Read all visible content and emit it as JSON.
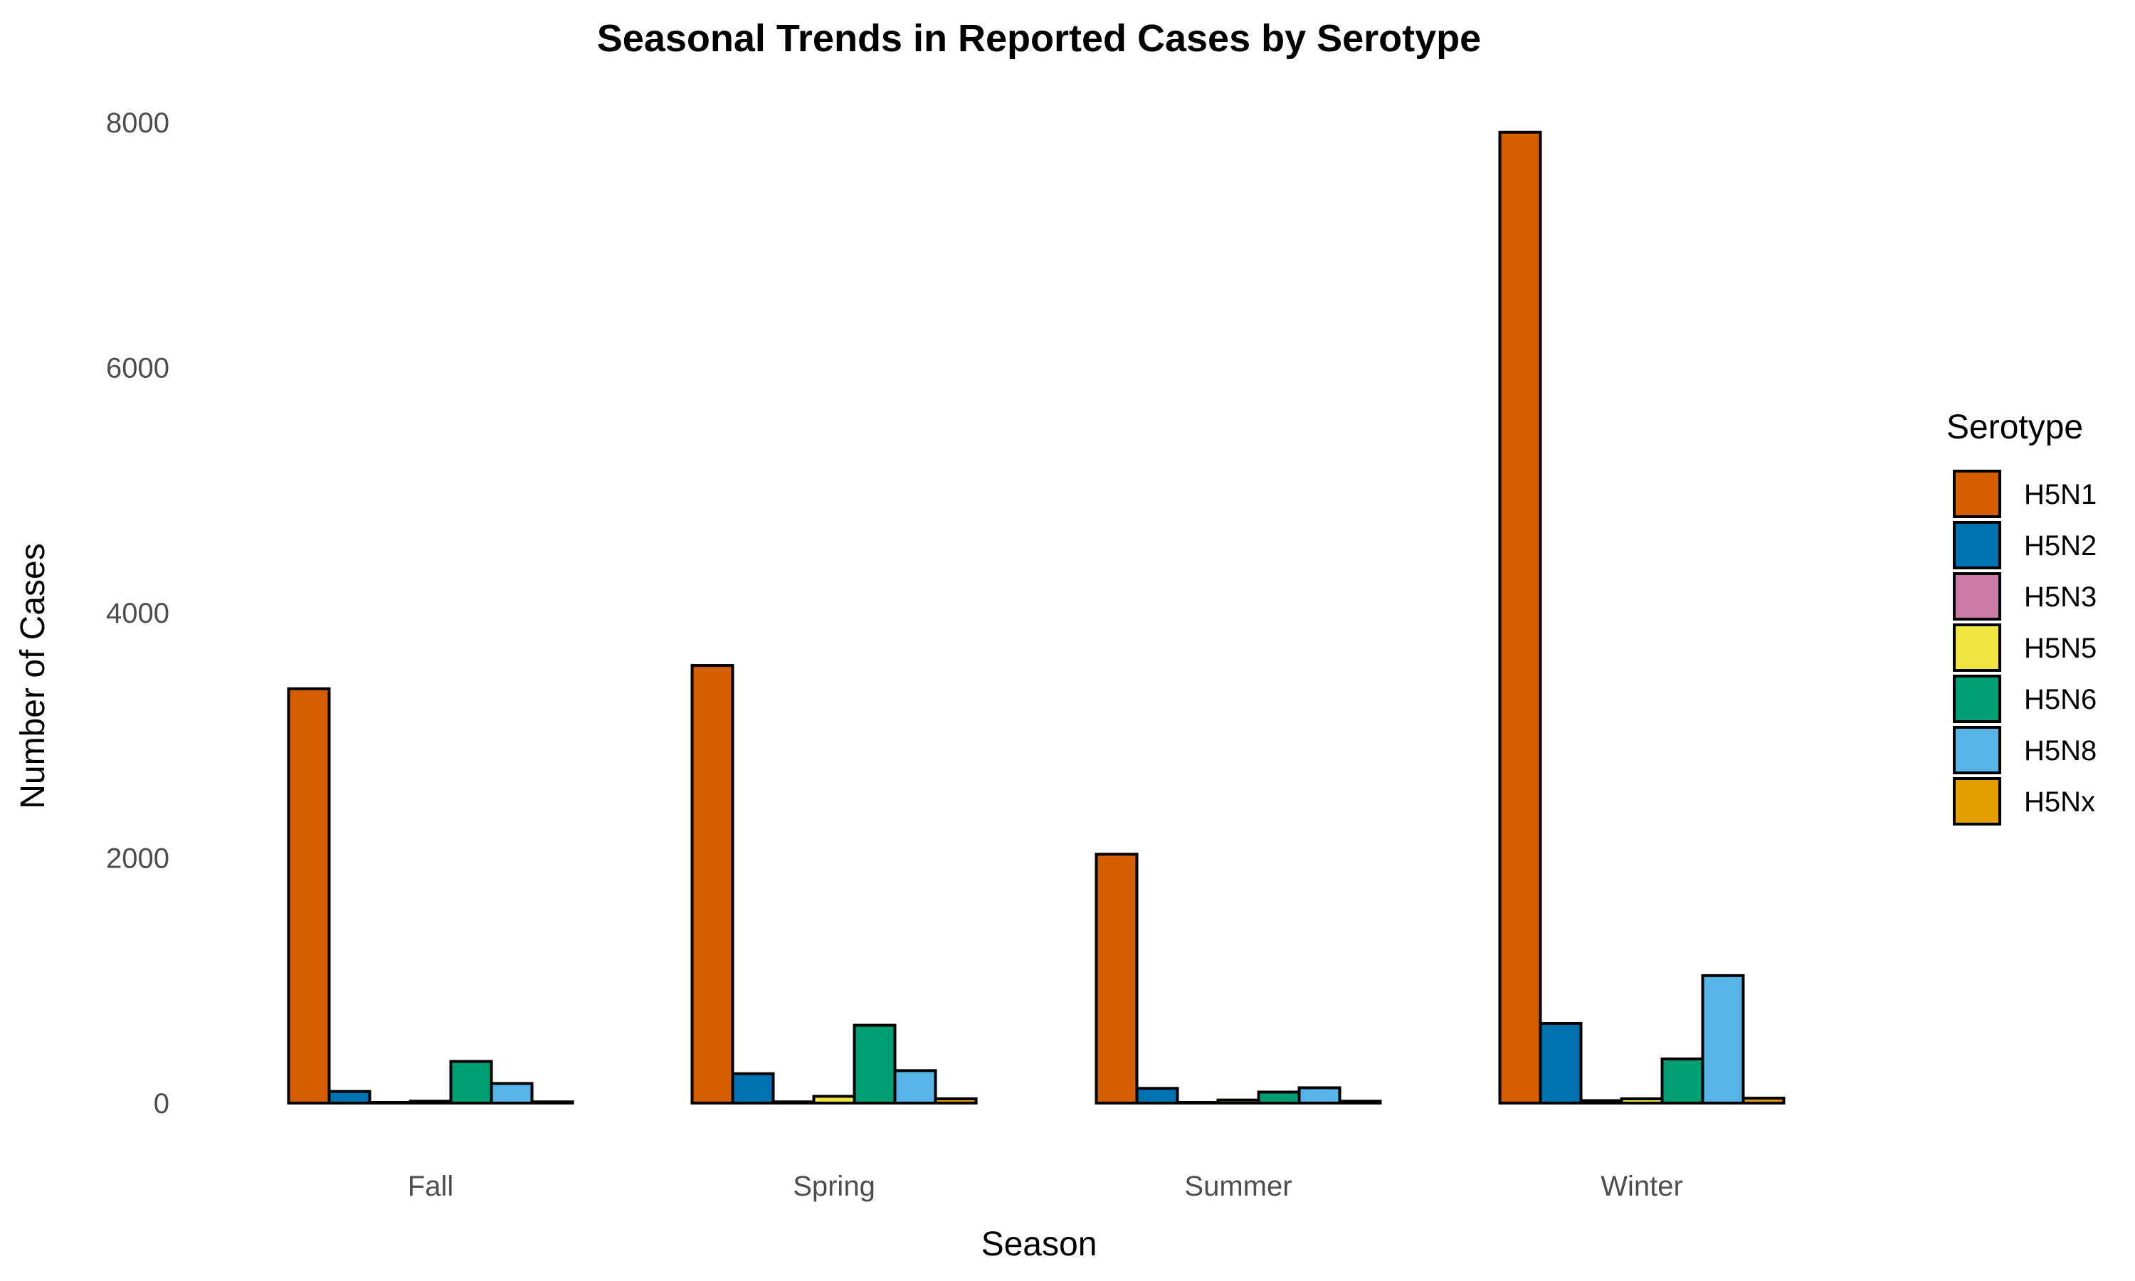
{
  "chart_data": {
    "type": "bar",
    "title": "Seasonal Trends in Reported Cases by Serotype",
    "xlabel": "Season",
    "ylabel": "Number of Cases",
    "categories": [
      "Fall",
      "Spring",
      "Summer",
      "Winter"
    ],
    "ylim": [
      0,
      8000
    ],
    "yticks": [
      "0",
      "2000",
      "4000",
      "6000",
      "8000"
    ],
    "grid": false,
    "legend": {
      "title": "Serotype",
      "placement": "right"
    },
    "series": [
      {
        "name": "H5N1",
        "color": "#D55E00",
        "values": [
          3380,
          3570,
          2030,
          7920
        ]
      },
      {
        "name": "H5N2",
        "color": "#0072B2",
        "values": [
          95,
          240,
          120,
          650
        ]
      },
      {
        "name": "H5N3",
        "color": "#CC79A7",
        "values": [
          5,
          10,
          5,
          20
        ]
      },
      {
        "name": "H5N5",
        "color": "#F0E442",
        "values": [
          15,
          55,
          25,
          35
        ]
      },
      {
        "name": "H5N6",
        "color": "#009E73",
        "values": [
          340,
          635,
          90,
          360
        ]
      },
      {
        "name": "H5N8",
        "color": "#56B4E9",
        "values": [
          160,
          265,
          125,
          1040
        ]
      },
      {
        "name": "H5Nx",
        "color": "#E69F00",
        "values": [
          10,
          35,
          15,
          40
        ]
      }
    ]
  }
}
